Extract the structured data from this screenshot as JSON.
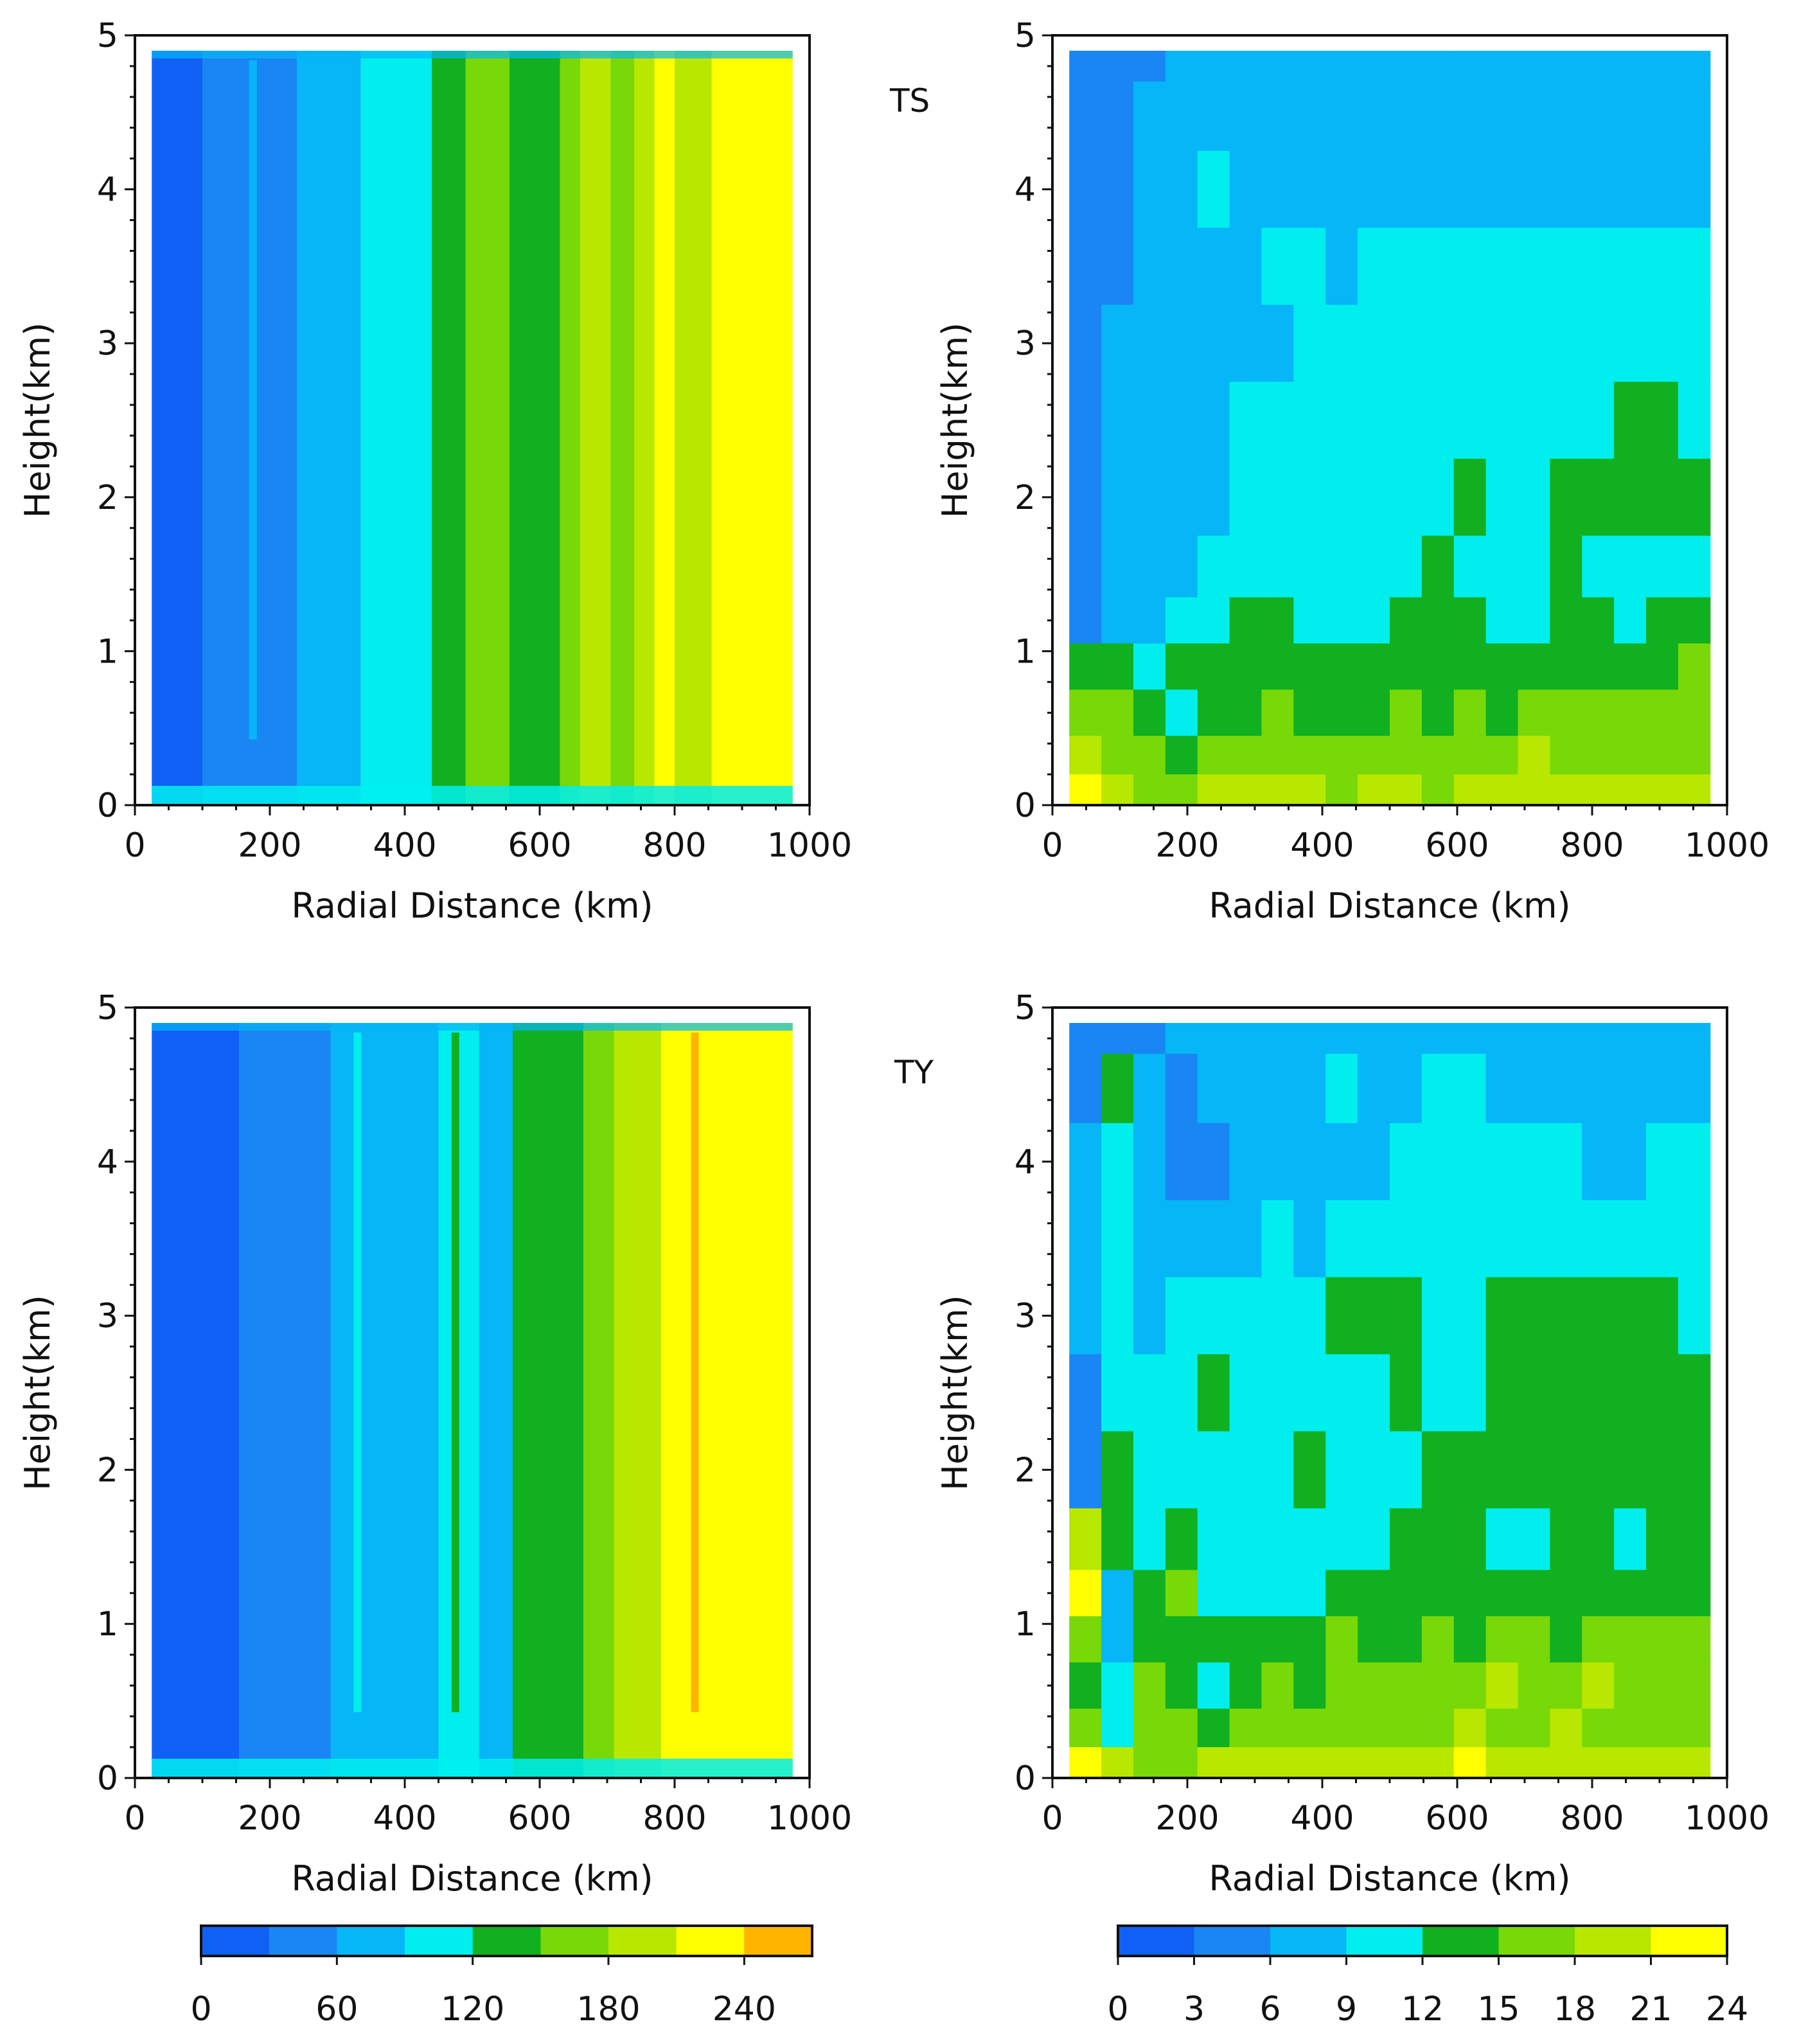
{
  "figure": {
    "panel_labels": {
      "ts": "TS",
      "ty": "TY"
    },
    "colorbars": {
      "left": {
        "ticks": [
          "0",
          "60",
          "120",
          "180",
          "240"
        ],
        "bounds": [
          0,
          30,
          60,
          90,
          120,
          150,
          180,
          210,
          240,
          270
        ],
        "colors": [
          "#1060f5",
          "#1a86f3",
          "#06b6f7",
          "#00eeee",
          "#10b020",
          "#78d808",
          "#b8e800",
          "#ffff00",
          "#ffb400"
        ]
      },
      "right": {
        "ticks": [
          "0",
          "3",
          "6",
          "9",
          "12",
          "15",
          "18",
          "21",
          "24"
        ],
        "bounds": [
          0,
          3,
          6,
          9,
          12,
          15,
          18,
          21,
          24
        ],
        "colors": [
          "#1060f5",
          "#1a86f3",
          "#06b6f7",
          "#00eeee",
          "#10b020",
          "#78d808",
          "#b8e800",
          "#ffff00"
        ]
      }
    }
  },
  "chart_data": [
    {
      "id": "ts-mean",
      "type": "heatmap",
      "title": "",
      "xlabel": "Radial Distance (km)",
      "ylabel": "Height(km)",
      "xlim": [
        0,
        1000
      ],
      "ylim": [
        0,
        5
      ],
      "xticks": [
        "0",
        "200",
        "400",
        "600",
        "800",
        "1000"
      ],
      "yticks": [
        "0",
        "1",
        "2",
        "3",
        "4",
        "5"
      ],
      "colorbar": "left",
      "data_extent": {
        "x": [
          25,
          975
        ],
        "y": [
          0,
          4.9
        ]
      },
      "bands": [
        {
          "x0": 25,
          "x1": 100,
          "level": 0
        },
        {
          "x0": 100,
          "x1": 240,
          "level": 1
        },
        {
          "x0": 240,
          "x1": 335,
          "level": 2
        },
        {
          "x0": 335,
          "x1": 440,
          "level": 3
        },
        {
          "x0": 440,
          "x1": 490,
          "level": 4
        },
        {
          "x0": 490,
          "x1": 555,
          "level": 5
        },
        {
          "x0": 555,
          "x1": 630,
          "level": 4
        },
        {
          "x0": 630,
          "x1": 660,
          "level": 5
        },
        {
          "x0": 660,
          "x1": 705,
          "level": 6
        },
        {
          "x0": 705,
          "x1": 740,
          "level": 5
        },
        {
          "x0": 740,
          "x1": 770,
          "level": 6
        },
        {
          "x0": 770,
          "x1": 800,
          "level": 7
        },
        {
          "x0": 800,
          "x1": 855,
          "level": 6
        },
        {
          "x0": 855,
          "x1": 975,
          "level": 7
        }
      ],
      "thin_lines": [
        {
          "x": 175,
          "level": 2
        }
      ]
    },
    {
      "id": "ts-variance",
      "type": "heatmap",
      "title": "",
      "xlabel": "Radial Distance (km)",
      "ylabel": "Height(km)",
      "xlim": [
        0,
        1000
      ],
      "ylim": [
        0,
        5
      ],
      "xticks": [
        "0",
        "200",
        "400",
        "600",
        "800",
        "1000"
      ],
      "yticks": [
        "0",
        "1",
        "2",
        "3",
        "4",
        "5"
      ],
      "colorbar": "right",
      "data_extent": {
        "x": [
          25,
          975
        ],
        "y": [
          0,
          4.9
        ]
      },
      "heights": [
        4.9,
        4.5,
        4.0,
        3.5,
        3.0,
        2.5,
        2.0,
        1.5,
        1.2,
        0.9,
        0.6,
        0.3,
        0.1
      ],
      "rows": [
        [
          1,
          1,
          1,
          2,
          2,
          2,
          2,
          2,
          2,
          2,
          2,
          2,
          2,
          2,
          2,
          2,
          2,
          2,
          2,
          2
        ],
        [
          1,
          1,
          2,
          2,
          2,
          2,
          2,
          2,
          2,
          2,
          2,
          2,
          2,
          2,
          2,
          2,
          2,
          2,
          2,
          2
        ],
        [
          1,
          1,
          2,
          2,
          3,
          2,
          2,
          2,
          2,
          2,
          2,
          2,
          2,
          2,
          2,
          2,
          2,
          2,
          2,
          2
        ],
        [
          1,
          1,
          2,
          2,
          2,
          2,
          3,
          3,
          2,
          3,
          3,
          3,
          3,
          3,
          3,
          3,
          3,
          3,
          3,
          3
        ],
        [
          1,
          2,
          2,
          2,
          2,
          2,
          2,
          3,
          3,
          3,
          3,
          3,
          3,
          3,
          3,
          3,
          3,
          3,
          3,
          3
        ],
        [
          1,
          2,
          2,
          2,
          2,
          3,
          3,
          3,
          3,
          3,
          3,
          3,
          3,
          3,
          3,
          3,
          3,
          4,
          4,
          3
        ],
        [
          1,
          2,
          2,
          2,
          2,
          3,
          3,
          3,
          3,
          3,
          3,
          3,
          4,
          3,
          3,
          4,
          4,
          4,
          4,
          4
        ],
        [
          1,
          2,
          2,
          2,
          3,
          3,
          3,
          3,
          3,
          3,
          3,
          4,
          3,
          3,
          3,
          4,
          3,
          3,
          3,
          3
        ],
        [
          1,
          2,
          2,
          3,
          3,
          4,
          4,
          3,
          3,
          3,
          4,
          4,
          4,
          3,
          3,
          4,
          4,
          3,
          4,
          4
        ],
        [
          4,
          4,
          3,
          4,
          4,
          4,
          4,
          4,
          4,
          4,
          4,
          4,
          4,
          4,
          4,
          4,
          4,
          4,
          4,
          5
        ],
        [
          5,
          5,
          4,
          3,
          4,
          4,
          5,
          4,
          4,
          4,
          5,
          4,
          5,
          4,
          5,
          5,
          5,
          5,
          5,
          5
        ],
        [
          6,
          5,
          5,
          4,
          5,
          5,
          5,
          5,
          5,
          5,
          5,
          5,
          5,
          5,
          6,
          5,
          5,
          5,
          5,
          5
        ],
        [
          7,
          6,
          5,
          5,
          6,
          6,
          6,
          6,
          5,
          6,
          6,
          5,
          6,
          6,
          6,
          6,
          6,
          6,
          6,
          6
        ]
      ]
    },
    {
      "id": "ty-mean",
      "type": "heatmap",
      "title": "",
      "xlabel": "Radial Distance (km)",
      "ylabel": "Height(km)",
      "xlim": [
        0,
        1000
      ],
      "ylim": [
        0,
        5
      ],
      "xticks": [
        "0",
        "200",
        "400",
        "600",
        "800",
        "1000"
      ],
      "yticks": [
        "0",
        "1",
        "2",
        "3",
        "4",
        "5"
      ],
      "colorbar": "left",
      "data_extent": {
        "x": [
          25,
          975
        ],
        "y": [
          0,
          4.9
        ]
      },
      "bands": [
        {
          "x0": 25,
          "x1": 155,
          "level": 0
        },
        {
          "x0": 155,
          "x1": 290,
          "level": 1
        },
        {
          "x0": 290,
          "x1": 450,
          "level": 2
        },
        {
          "x0": 450,
          "x1": 510,
          "level": 3
        },
        {
          "x0": 510,
          "x1": 560,
          "level": 2
        },
        {
          "x0": 560,
          "x1": 665,
          "level": 4
        },
        {
          "x0": 665,
          "x1": 710,
          "level": 5
        },
        {
          "x0": 710,
          "x1": 780,
          "level": 6
        },
        {
          "x0": 780,
          "x1": 975,
          "level": 7
        }
      ],
      "thin_lines": [
        {
          "x": 330,
          "level": 3
        },
        {
          "x": 475,
          "level": 4
        },
        {
          "x": 830,
          "level": 8
        }
      ]
    },
    {
      "id": "ty-variance",
      "type": "heatmap",
      "title": "",
      "xlabel": "Radial Distance (km)",
      "ylabel": "Height(km)",
      "xlim": [
        0,
        1000
      ],
      "ylim": [
        0,
        5
      ],
      "xticks": [
        "0",
        "200",
        "400",
        "600",
        "800",
        "1000"
      ],
      "yticks": [
        "0",
        "1",
        "2",
        "3",
        "4",
        "5"
      ],
      "colorbar": "right",
      "data_extent": {
        "x": [
          25,
          975
        ],
        "y": [
          0,
          4.9
        ]
      },
      "heights": [
        4.9,
        4.5,
        4.0,
        3.5,
        3.0,
        2.5,
        2.0,
        1.5,
        1.2,
        0.9,
        0.6,
        0.3,
        0.1
      ],
      "rows": [
        [
          1,
          1,
          1,
          2,
          2,
          2,
          2,
          2,
          2,
          2,
          2,
          2,
          2,
          2,
          2,
          2,
          2,
          2,
          2,
          2
        ],
        [
          1,
          4,
          2,
          1,
          2,
          2,
          2,
          2,
          3,
          2,
          2,
          3,
          3,
          2,
          2,
          2,
          2,
          2,
          2,
          2
        ],
        [
          2,
          3,
          2,
          1,
          1,
          2,
          2,
          2,
          2,
          2,
          3,
          3,
          3,
          3,
          3,
          3,
          2,
          2,
          3,
          3
        ],
        [
          2,
          3,
          2,
          2,
          2,
          2,
          3,
          2,
          3,
          3,
          3,
          3,
          3,
          3,
          3,
          3,
          3,
          3,
          3,
          3
        ],
        [
          2,
          3,
          2,
          3,
          3,
          3,
          3,
          3,
          4,
          4,
          4,
          3,
          3,
          4,
          4,
          4,
          4,
          4,
          4,
          3
        ],
        [
          1,
          3,
          3,
          3,
          4,
          3,
          3,
          3,
          3,
          3,
          4,
          3,
          3,
          4,
          4,
          4,
          4,
          4,
          4,
          4
        ],
        [
          1,
          4,
          3,
          3,
          3,
          3,
          3,
          4,
          3,
          3,
          3,
          4,
          4,
          4,
          4,
          4,
          4,
          4,
          4,
          4
        ],
        [
          6,
          4,
          3,
          4,
          3,
          3,
          3,
          3,
          3,
          3,
          4,
          4,
          4,
          3,
          3,
          4,
          4,
          3,
          4,
          4
        ],
        [
          7,
          2,
          4,
          5,
          3,
          3,
          3,
          3,
          4,
          4,
          4,
          4,
          4,
          4,
          4,
          4,
          4,
          4,
          4,
          4
        ],
        [
          5,
          2,
          4,
          4,
          4,
          4,
          4,
          4,
          5,
          4,
          4,
          5,
          4,
          5,
          5,
          4,
          5,
          5,
          5,
          5
        ],
        [
          4,
          3,
          5,
          4,
          3,
          4,
          5,
          4,
          5,
          5,
          5,
          5,
          5,
          6,
          5,
          5,
          6,
          5,
          5,
          5
        ],
        [
          5,
          3,
          5,
          5,
          4,
          5,
          5,
          5,
          5,
          5,
          5,
          5,
          6,
          5,
          5,
          6,
          5,
          5,
          5,
          5
        ],
        [
          7,
          6,
          5,
          5,
          6,
          6,
          6,
          6,
          6,
          6,
          6,
          6,
          7,
          6,
          6,
          6,
          6,
          6,
          6,
          6
        ]
      ]
    }
  ]
}
